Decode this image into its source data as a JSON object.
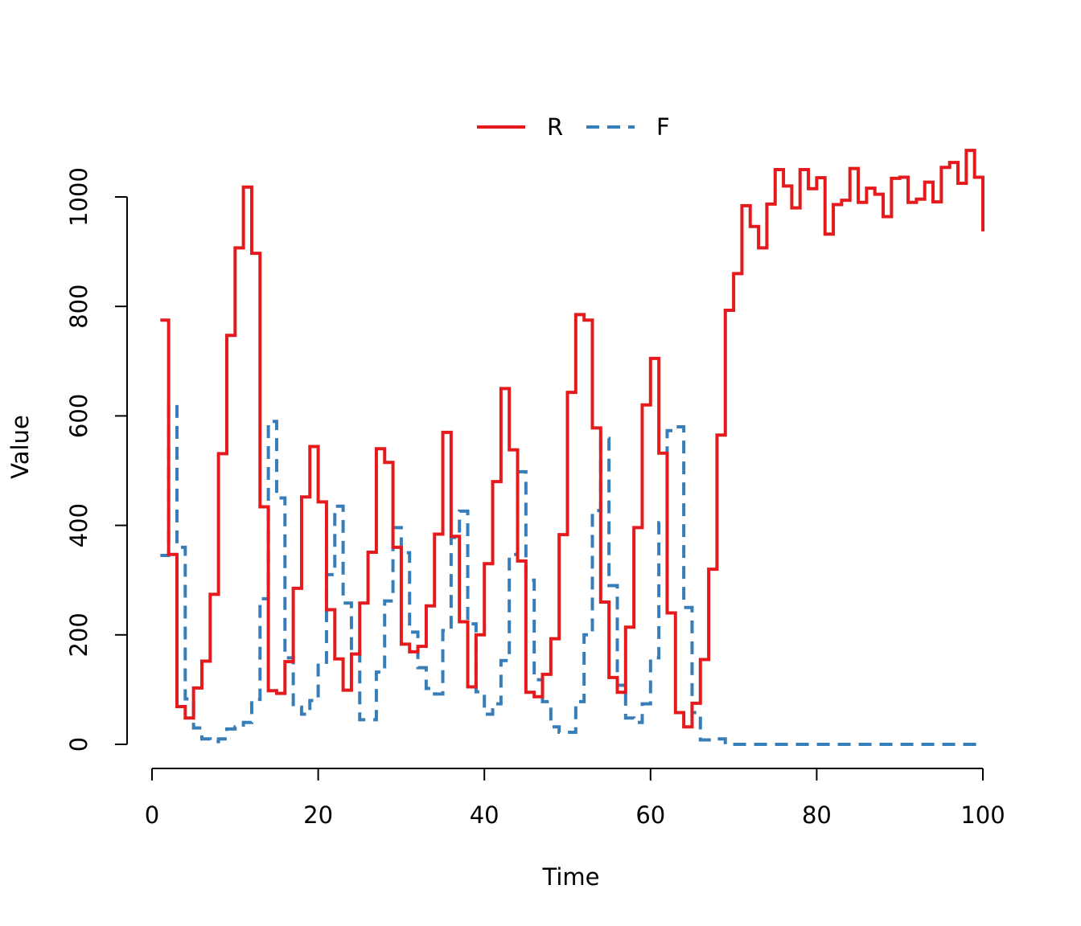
{
  "chart_data": {
    "type": "line",
    "step": true,
    "title": "",
    "xlabel": "Time",
    "ylabel": "Value",
    "xlim": [
      0,
      100
    ],
    "ylim": [
      0,
      1000
    ],
    "x_ticks": [
      "0",
      "20",
      "40",
      "60",
      "80",
      "100"
    ],
    "y_ticks": [
      "0",
      "200",
      "400",
      "600",
      "800",
      "1000"
    ],
    "grid": false,
    "legend_position": "top-center",
    "x": [
      1,
      2,
      3,
      4,
      5,
      6,
      7,
      8,
      9,
      10,
      11,
      12,
      13,
      14,
      15,
      16,
      17,
      18,
      19,
      20,
      21,
      22,
      23,
      24,
      25,
      26,
      27,
      28,
      29,
      30,
      31,
      32,
      33,
      34,
      35,
      36,
      37,
      38,
      39,
      40,
      41,
      42,
      43,
      44,
      45,
      46,
      47,
      48,
      49,
      50,
      51,
      52,
      53,
      54,
      55,
      56,
      57,
      58,
      59,
      60,
      61,
      62,
      63,
      64,
      65,
      66,
      67,
      68,
      69,
      70,
      71,
      72,
      73,
      74,
      75,
      76,
      77,
      78,
      79,
      80,
      81,
      82,
      83,
      84,
      85,
      86,
      87,
      88,
      89,
      90,
      91,
      92,
      93,
      94,
      95,
      96,
      97,
      98,
      99,
      100
    ],
    "series": [
      {
        "name": "R",
        "color": "#e41a1c",
        "dash": "solid",
        "values": [
          775,
          347,
          69,
          48,
          103,
          152,
          274,
          531,
          747,
          907,
          1018,
          897,
          434,
          98,
          93,
          151,
          285,
          452,
          544,
          443,
          246,
          156,
          99,
          165,
          258,
          351,
          540,
          515,
          360,
          183,
          169,
          179,
          253,
          384,
          570,
          380,
          224,
          105,
          200,
          330,
          480,
          650,
          538,
          335,
          95,
          87,
          128,
          193,
          383,
          643,
          785,
          775,
          578,
          260,
          122,
          95,
          214,
          396,
          620,
          705,
          532,
          240,
          58,
          32,
          75,
          155,
          320,
          565,
          793,
          860,
          984,
          946,
          907,
          987,
          1050,
          1020,
          980,
          1050,
          1015,
          1035,
          932,
          986,
          994,
          1052,
          990,
          1016,
          1005,
          964,
          1034,
          1036,
          990,
          996,
          1027,
          991,
          1054,
          1063,
          1025,
          1085,
          1036,
          937
        ]
      },
      {
        "name": "F",
        "color": "#377eb8",
        "dash": "dashed",
        "values": [
          345,
          620,
          360,
          83,
          30,
          10,
          5,
          10,
          28,
          32,
          40,
          82,
          266,
          590,
          450,
          158,
          68,
          55,
          80,
          150,
          310,
          435,
          258,
          170,
          45,
          45,
          132,
          262,
          396,
          350,
          205,
          140,
          102,
          92,
          208,
          378,
          426,
          220,
          96,
          55,
          74,
          153,
          347,
          498,
          300,
          118,
          78,
          32,
          22,
          22,
          78,
          200,
          427,
          559,
          290,
          108,
          48,
          40,
          74,
          158,
          405,
          573,
          580,
          250,
          58,
          8,
          8,
          10,
          0,
          0,
          0,
          0,
          0,
          0,
          0,
          0,
          0,
          0,
          0,
          0,
          0,
          0,
          0,
          0,
          0,
          0,
          0,
          0,
          0,
          0,
          0,
          0,
          0,
          0,
          0,
          0,
          0,
          0,
          0,
          0
        ]
      }
    ]
  }
}
